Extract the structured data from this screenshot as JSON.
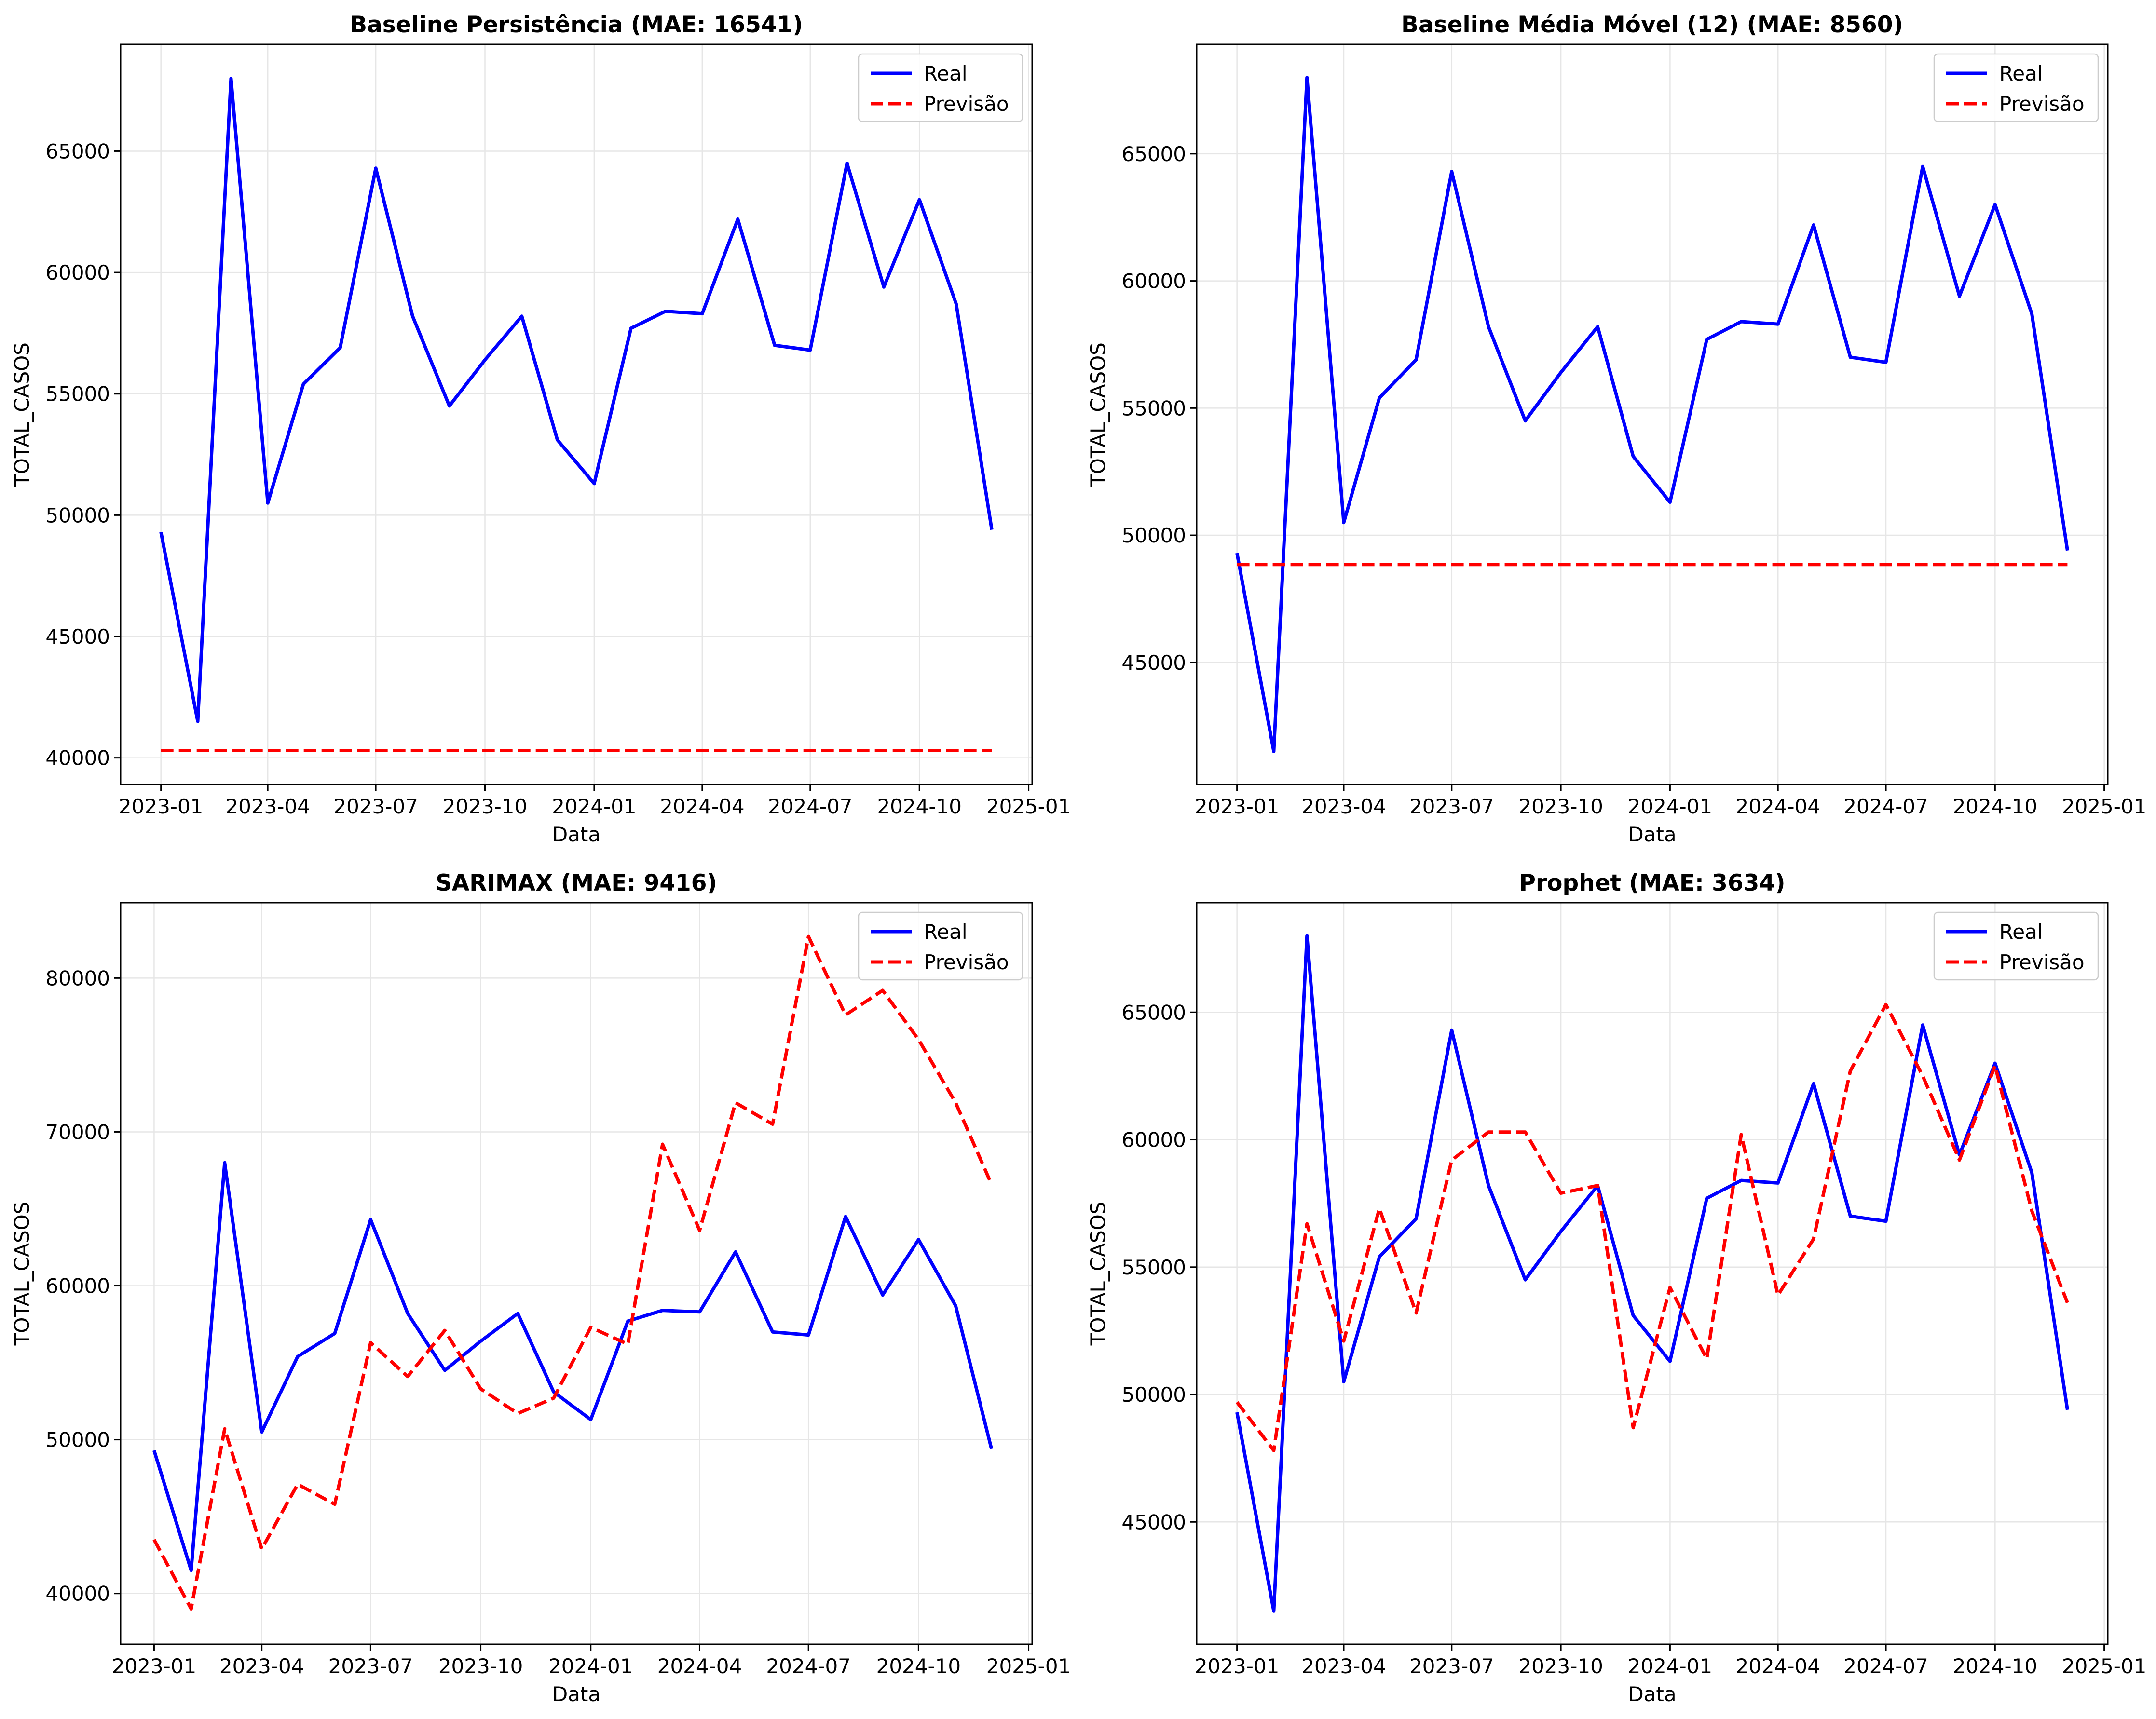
{
  "chart_data": [
    {
      "type": "line",
      "title": "Baseline Persistência (MAE: 16541)",
      "xlabel": "Data",
      "ylabel": "TOTAL_CASOS",
      "x": [
        "2023-01",
        "2023-02",
        "2023-03",
        "2023-04",
        "2023-05",
        "2023-06",
        "2023-07",
        "2023-08",
        "2023-09",
        "2023-10",
        "2023-11",
        "2023-12",
        "2024-01",
        "2024-02",
        "2024-03",
        "2024-04",
        "2024-05",
        "2024-06",
        "2024-07",
        "2024-08",
        "2024-09",
        "2024-10",
        "2024-11",
        "2024-12"
      ],
      "xticks": [
        "2023-01",
        "2023-04",
        "2023-07",
        "2023-10",
        "2024-01",
        "2024-04",
        "2024-07",
        "2024-10",
        "2025-01"
      ],
      "yticks": [
        40000,
        45000,
        50000,
        55000,
        60000,
        65000
      ],
      "ylim": [
        38900,
        69400
      ],
      "xlim": [
        "2022-11-28",
        "2025-01-04"
      ],
      "grid": true,
      "legend": "top-right",
      "series": [
        {
          "name": "Real",
          "color": "#0000ff",
          "style": "solid",
          "values": [
            49300,
            41500,
            68000,
            50500,
            55400,
            56900,
            64300,
            58200,
            54500,
            56400,
            58200,
            53100,
            51300,
            57700,
            58400,
            58300,
            62200,
            57000,
            56800,
            64500,
            59400,
            63000,
            58700,
            49400
          ]
        },
        {
          "name": "Previsão",
          "color": "#ff0000",
          "style": "dashed",
          "values": [
            40300,
            40300,
            40300,
            40300,
            40300,
            40300,
            40300,
            40300,
            40300,
            40300,
            40300,
            40300,
            40300,
            40300,
            40300,
            40300,
            40300,
            40300,
            40300,
            40300,
            40300,
            40300,
            40300,
            40300
          ]
        }
      ]
    },
    {
      "type": "line",
      "title": "Baseline Média Móvel (12) (MAE: 8560)",
      "xlabel": "Data",
      "ylabel": "TOTAL_CASOS",
      "x": [
        "2023-01",
        "2023-02",
        "2023-03",
        "2023-04",
        "2023-05",
        "2023-06",
        "2023-07",
        "2023-08",
        "2023-09",
        "2023-10",
        "2023-11",
        "2023-12",
        "2024-01",
        "2024-02",
        "2024-03",
        "2024-04",
        "2024-05",
        "2024-06",
        "2024-07",
        "2024-08",
        "2024-09",
        "2024-10",
        "2024-11",
        "2024-12"
      ],
      "xticks": [
        "2023-01",
        "2023-04",
        "2023-07",
        "2023-10",
        "2024-01",
        "2024-04",
        "2024-07",
        "2024-10",
        "2025-01"
      ],
      "yticks": [
        45000,
        50000,
        55000,
        60000,
        65000
      ],
      "ylim": [
        40200,
        69300
      ],
      "xlim": [
        "2022-11-28",
        "2025-01-04"
      ],
      "grid": true,
      "legend": "top-right",
      "series": [
        {
          "name": "Real",
          "color": "#0000ff",
          "style": "solid",
          "values": [
            49300,
            41500,
            68000,
            50500,
            55400,
            56900,
            64300,
            58200,
            54500,
            56400,
            58200,
            53100,
            51300,
            57700,
            58400,
            58300,
            62200,
            57000,
            56800,
            64500,
            59400,
            63000,
            58700,
            49400
          ]
        },
        {
          "name": "Previsão",
          "color": "#ff0000",
          "style": "dashed",
          "values": [
            48850,
            48850,
            48850,
            48850,
            48850,
            48850,
            48850,
            48850,
            48850,
            48850,
            48850,
            48850,
            48850,
            48850,
            48850,
            48850,
            48850,
            48850,
            48850,
            48850,
            48850,
            48850,
            48850,
            48850
          ]
        }
      ]
    },
    {
      "type": "line",
      "title": "SARIMAX (MAE: 9416)",
      "xlabel": "Data",
      "ylabel": "TOTAL_CASOS",
      "x": [
        "2023-01",
        "2023-02",
        "2023-03",
        "2023-04",
        "2023-05",
        "2023-06",
        "2023-07",
        "2023-08",
        "2023-09",
        "2023-10",
        "2023-11",
        "2023-12",
        "2024-01",
        "2024-02",
        "2024-03",
        "2024-04",
        "2024-05",
        "2024-06",
        "2024-07",
        "2024-08",
        "2024-09",
        "2024-10",
        "2024-11",
        "2024-12"
      ],
      "xticks": [
        "2023-01",
        "2023-04",
        "2023-07",
        "2023-10",
        "2024-01",
        "2024-04",
        "2024-07",
        "2024-10",
        "2025-01"
      ],
      "yticks": [
        40000,
        50000,
        60000,
        70000,
        80000
      ],
      "ylim": [
        36700,
        84900
      ],
      "xlim": [
        "2022-12-04",
        "2025-01-04"
      ],
      "grid": true,
      "legend": "top-right",
      "series": [
        {
          "name": "Real",
          "color": "#0000ff",
          "style": "solid",
          "values": [
            49300,
            41500,
            68000,
            50500,
            55400,
            56900,
            64300,
            58200,
            54500,
            56400,
            58200,
            53100,
            51300,
            57700,
            58400,
            58300,
            62200,
            57000,
            56800,
            64500,
            59400,
            63000,
            58700,
            49400
          ]
        },
        {
          "name": "Previsão",
          "color": "#ff0000",
          "style": "dashed",
          "values": [
            43500,
            39000,
            50700,
            42900,
            47100,
            45800,
            56300,
            54100,
            57100,
            53300,
            51700,
            52700,
            57300,
            56200,
            69200,
            63600,
            71900,
            70500,
            82700,
            77600,
            79200,
            76000,
            71900,
            66600
          ]
        }
      ]
    },
    {
      "type": "line",
      "title": "Prophet (MAE: 3634)",
      "xlabel": "Data",
      "ylabel": "TOTAL_CASOS",
      "x": [
        "2023-01",
        "2023-02",
        "2023-03",
        "2023-04",
        "2023-05",
        "2023-06",
        "2023-07",
        "2023-08",
        "2023-09",
        "2023-10",
        "2023-11",
        "2023-12",
        "2024-01",
        "2024-02",
        "2024-03",
        "2024-04",
        "2024-05",
        "2024-06",
        "2024-07",
        "2024-08",
        "2024-09",
        "2024-10",
        "2024-11",
        "2024-12"
      ],
      "xticks": [
        "2023-01",
        "2023-04",
        "2023-07",
        "2023-10",
        "2024-01",
        "2024-04",
        "2024-07",
        "2024-10",
        "2025-01"
      ],
      "yticks": [
        45000,
        50000,
        55000,
        60000,
        65000
      ],
      "ylim": [
        40200,
        69300
      ],
      "xlim": [
        "2022-11-28",
        "2025-01-04"
      ],
      "grid": true,
      "legend": "top-right",
      "series": [
        {
          "name": "Real",
          "color": "#0000ff",
          "style": "solid",
          "values": [
            49300,
            41500,
            68000,
            50500,
            55400,
            56900,
            64300,
            58200,
            54500,
            56400,
            58200,
            53100,
            51300,
            57700,
            58400,
            58300,
            62200,
            57000,
            56800,
            64500,
            59400,
            63000,
            58700,
            49400
          ]
        },
        {
          "name": "Previsão",
          "color": "#ff0000",
          "style": "dashed",
          "values": [
            49700,
            47800,
            56700,
            52100,
            57300,
            53200,
            59200,
            60300,
            60300,
            57900,
            58200,
            48700,
            54200,
            51400,
            60200,
            53900,
            56100,
            62700,
            65300,
            62500,
            59200,
            62900,
            57200,
            53600
          ]
        }
      ]
    }
  ]
}
